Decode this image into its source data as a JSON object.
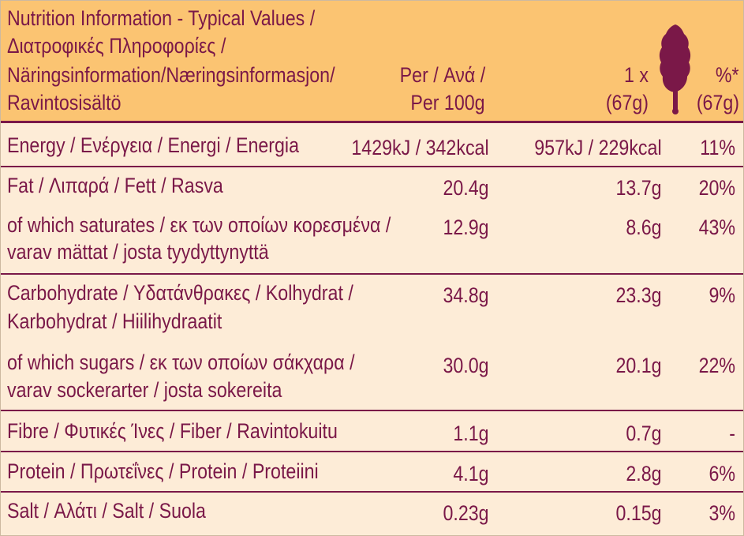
{
  "header": {
    "title_lines": [
      "Nutrition Information - Typical Values /",
      "Διατροφικές Πληροφορίες /",
      "Näringsinformation/Næringsinformasjon/",
      "Ravintosisältö"
    ],
    "per_label_lines": [
      "Per / Ανά /",
      "Per 100g"
    ],
    "portion_label_lines": [
      "1 x",
      "(67g)"
    ],
    "percent_label_lines": [
      "%*",
      "(67g)"
    ],
    "icon": "fig-fruit-icon"
  },
  "rows": [
    {
      "name_lines": [
        "Energy / Ενέργεια / Energi / Energia"
      ],
      "per100": "1429kJ / 342kcal",
      "portion": "957kJ / 229kcal",
      "ri": "11%"
    },
    {
      "name_lines": [
        "Fat / Λιπαρά / Fett / Rasva"
      ],
      "per100": "20.4g",
      "portion": "13.7g",
      "ri": "20%"
    },
    {
      "name_lines": [
        "of which saturates / εκ των οποίων κορεσμένα /",
        "varav mättat / josta tyydyttynyttä"
      ],
      "per100": "12.9g",
      "portion": "8.6g",
      "ri": "43%"
    },
    {
      "name_lines": [
        "Carbohydrate / Υδατάνθρακες / Kolhydrat /",
        "Karbohydrat / Hiilihydraatit"
      ],
      "per100": "34.8g",
      "portion": "23.3g",
      "ri": "9%"
    },
    {
      "name_lines": [
        "of which sugars / εκ των οποίων σάκχαρα /",
        "varav sockerarter / josta sokereita"
      ],
      "per100": "30.0g",
      "portion": "20.1g",
      "ri": "22%"
    },
    {
      "name_lines": [
        "Fibre / Φυτικές Ίνες / Fiber / Ravintokuitu"
      ],
      "per100": "1.1g",
      "portion": "0.7g",
      "ri": "-"
    },
    {
      "name_lines": [
        "Protein / Πρωτεΐνες / Protein / Proteiini"
      ],
      "per100": "4.1g",
      "portion": "2.8g",
      "ri": "6%"
    },
    {
      "name_lines": [
        "Salt / Αλάτι / Salt / Suola"
      ],
      "per100": "0.23g",
      "portion": "0.15g",
      "ri": "3%"
    }
  ],
  "colors": {
    "header_bg": "#fbc472",
    "body_bg": "#fdecd7",
    "text": "#7a1848"
  }
}
